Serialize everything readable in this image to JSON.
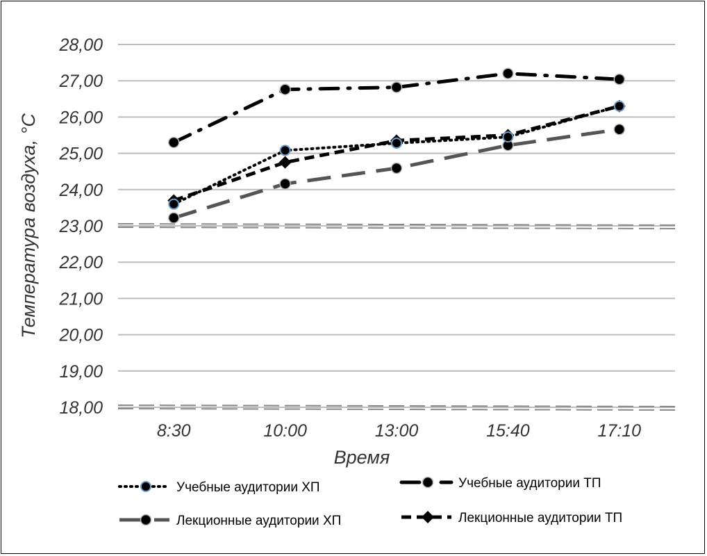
{
  "chart_data": {
    "type": "line",
    "title": "",
    "xlabel": "Время",
    "ylabel": "Температура воздуха, °С",
    "categories": [
      "8:30",
      "10:00",
      "13:00",
      "15:40",
      "17:10"
    ],
    "ylim": [
      18,
      28
    ],
    "yticks": [
      "18,00",
      "19,00",
      "20,00",
      "21,00",
      "22,00",
      "23,00",
      "24,00",
      "25,00",
      "26,00",
      "27,00",
      "28,00"
    ],
    "grid": true,
    "legend_position": "bottom",
    "series": [
      {
        "name": "Учебные аудитории ХП",
        "values": [
          23.6,
          25.08,
          25.28,
          25.45,
          26.3
        ],
        "style": "dotted",
        "marker": "circle-blue-edge",
        "color": "#000000"
      },
      {
        "name": "Учебные аудитории ТП",
        "values": [
          25.3,
          26.76,
          26.82,
          27.2,
          27.04
        ],
        "style": "dash-dot",
        "marker": "circle",
        "color": "#000000"
      },
      {
        "name": "Лекционные аудитории ХП",
        "values": [
          23.22,
          24.16,
          24.59,
          25.22,
          25.66
        ],
        "style": "long-dash",
        "marker": "circle",
        "color": "#555555"
      },
      {
        "name": "Лекционные аудитории ТП",
        "values": [
          23.7,
          24.75,
          25.35,
          25.5,
          26.3
        ],
        "style": "dash",
        "marker": "diamond",
        "color": "#000000"
      }
    ],
    "reference_lines": [
      {
        "value": 23,
        "style": "double-dash",
        "color": "#888888"
      },
      {
        "value": 18,
        "style": "double-dash",
        "color": "#888888"
      }
    ]
  }
}
